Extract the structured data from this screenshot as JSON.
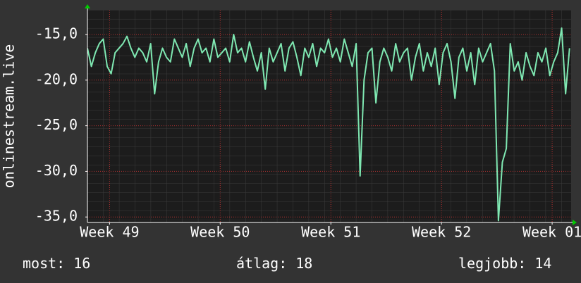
{
  "chart_data": {
    "type": "line",
    "y_label": "onlinestream.live",
    "xlim": [
      0,
      30.6
    ],
    "xticks": [
      {
        "value": 1.4,
        "label": "Week 49"
      },
      {
        "value": 8.4,
        "label": "Week 50"
      },
      {
        "value": 15.4,
        "label": "Week 51"
      },
      {
        "value": 22.4,
        "label": "Week 52"
      },
      {
        "value": 29.4,
        "label": "Week 01"
      }
    ],
    "ylim": [
      -35.6,
      -12.3
    ],
    "yticks": [
      {
        "value": -15,
        "label": "-15,0"
      },
      {
        "value": -20,
        "label": "-20,0"
      },
      {
        "value": -25,
        "label": "-25,0"
      },
      {
        "value": -30,
        "label": "-30,0"
      },
      {
        "value": -35,
        "label": "-35,0"
      }
    ],
    "grid": true,
    "x": [
      0,
      0.25,
      0.5,
      0.75,
      1,
      1.25,
      1.5,
      1.75,
      2,
      2.25,
      2.5,
      2.75,
      3,
      3.25,
      3.5,
      3.75,
      4,
      4.25,
      4.5,
      4.75,
      5,
      5.25,
      5.5,
      5.75,
      6,
      6.25,
      6.5,
      6.75,
      7,
      7.25,
      7.5,
      7.75,
      8,
      8.25,
      8.5,
      8.75,
      9,
      9.25,
      9.5,
      9.75,
      10,
      10.25,
      10.5,
      10.75,
      11,
      11.25,
      11.5,
      11.75,
      12,
      12.25,
      12.5,
      12.75,
      13,
      13.25,
      13.5,
      13.75,
      14,
      14.25,
      14.5,
      14.75,
      15,
      15.25,
      15.5,
      15.75,
      16,
      16.25,
      16.5,
      16.75,
      17,
      17.25,
      17.5,
      17.75,
      18,
      18.25,
      18.5,
      18.75,
      19,
      19.25,
      19.5,
      19.75,
      20,
      20.25,
      20.5,
      20.75,
      21,
      21.25,
      21.5,
      21.75,
      22,
      22.25,
      22.5,
      22.75,
      23,
      23.25,
      23.5,
      23.75,
      24,
      24.25,
      24.5,
      24.75,
      25,
      25.25,
      25.5,
      25.75,
      26,
      26.25,
      26.5,
      26.75,
      27,
      27.25,
      27.5,
      27.75,
      28,
      28.25,
      28.5,
      28.75,
      29,
      29.25,
      29.5,
      29.75,
      30,
      30.25,
      30.5
    ],
    "series": [
      {
        "color": "#7fe8b2",
        "values": [
          -16.5,
          -18.5,
          -17,
          -16,
          -15.5,
          -18.5,
          -19.3,
          -17,
          -16.5,
          -16,
          -15.2,
          -16.5,
          -17.5,
          -16.5,
          -17,
          -18,
          -16,
          -21.5,
          -18,
          -16.5,
          -17.5,
          -18,
          -15.5,
          -16.5,
          -17.5,
          -16,
          -18.5,
          -16.5,
          -15.5,
          -17,
          -16.5,
          -18,
          -15.5,
          -17.5,
          -17,
          -16.5,
          -18,
          -15,
          -17,
          -16.5,
          -18,
          -15.8,
          -17.5,
          -19,
          -17,
          -21,
          -16.5,
          -18,
          -17,
          -16,
          -19,
          -16.5,
          -15.8,
          -17.5,
          -19.5,
          -16.5,
          -17.5,
          -16,
          -18.5,
          -16.5,
          -17,
          -15.5,
          -17.5,
          -16.5,
          -18,
          -15.5,
          -17,
          -18.5,
          -16,
          -30.5,
          -20,
          -17,
          -16.5,
          -22.5,
          -18,
          -16.5,
          -17.5,
          -19,
          -16,
          -18,
          -17,
          -16.5,
          -20,
          -17.5,
          -16,
          -19,
          -17,
          -18.5,
          -16.5,
          -20.5,
          -17,
          -16,
          -18,
          -22,
          -17.5,
          -16.5,
          -19,
          -17,
          -20.5,
          -16.5,
          -18,
          -17,
          -16,
          -19,
          -35.4,
          -29,
          -27.5,
          -16,
          -19,
          -18,
          -20,
          -17,
          -18.5,
          -19.5,
          -17,
          -18,
          -16.5,
          -19.5,
          -18,
          -17,
          -14.3,
          -21.5,
          -16.5
        ]
      }
    ],
    "stats": [
      {
        "label": "most:",
        "value": 16
      },
      {
        "label": "átlag:",
        "value": 18
      },
      {
        "label": "legjobb:",
        "value": 14
      }
    ]
  }
}
